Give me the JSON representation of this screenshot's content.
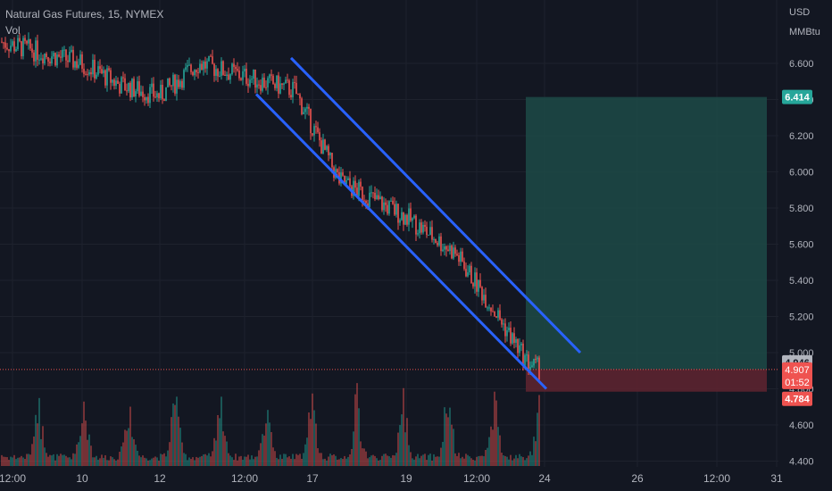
{
  "header": {
    "symbol_line": "Natural Gas Futures, 15, NYMEX",
    "volume_label": "Vol"
  },
  "price_axis": {
    "currency": "USD",
    "unit": "MMBtu",
    "ticks": [
      "6.600",
      "6.400",
      "6.200",
      "6.000",
      "5.800",
      "5.600",
      "5.400",
      "5.200",
      "5.000",
      "4.800",
      "4.600",
      "4.400"
    ]
  },
  "time_axis": {
    "ticks": [
      "12:00",
      "10",
      "12",
      "12:00",
      "17",
      "19",
      "12:00",
      "24",
      "26",
      "12:00",
      "31"
    ]
  },
  "price_labels": {
    "target": "6.414",
    "current": "4.946",
    "last": "4.907",
    "countdown": "01:52",
    "stop": "4.784"
  },
  "colors": {
    "background": "#131722",
    "grid": "#1e222d",
    "up": "#26a69a",
    "down": "#ef5350",
    "channel": "#2962ff",
    "profit_zone": "#1d4a47",
    "loss_zone": "#5c2430",
    "axis_text": "#b2b5be"
  },
  "chart_data": {
    "type": "candlestick",
    "title": "Natural Gas Futures, 15, NYMEX",
    "ylabel": "USD MMBtu",
    "ylim": [
      4.4,
      6.7
    ],
    "x_ticks": [
      "12:00",
      "10",
      "12",
      "12:00",
      "17",
      "19",
      "12:00",
      "24",
      "26",
      "12:00",
      "31"
    ],
    "price_path": [
      {
        "x": "9 Jun 12:00",
        "y": 6.72
      },
      {
        "x": "10",
        "y": 6.6
      },
      {
        "x": "11",
        "y": 6.48
      },
      {
        "x": "12",
        "y": 6.42
      },
      {
        "x": "12:00",
        "y": 6.6
      },
      {
        "x": "17",
        "y": 6.45
      },
      {
        "x": "18",
        "y": 5.95
      },
      {
        "x": "19",
        "y": 5.75
      },
      {
        "x": "20",
        "y": 5.55
      },
      {
        "x": "21",
        "y": 5.3
      },
      {
        "x": "22",
        "y": 4.95
      },
      {
        "x": "23",
        "y": 4.9
      }
    ],
    "channel": {
      "upper": [
        {
          "x": "16",
          "y": 6.63
        },
        {
          "x": "24",
          "y": 5.0
        }
      ],
      "lower": [
        {
          "x": "15",
          "y": 6.43
        },
        {
          "x": "24",
          "y": 4.8
        }
      ]
    },
    "position": {
      "type": "long",
      "entry": 4.907,
      "target": 6.414,
      "stop": 4.784
    },
    "current_price": 4.946,
    "last_price": 4.907,
    "volume_series": "Vol"
  }
}
